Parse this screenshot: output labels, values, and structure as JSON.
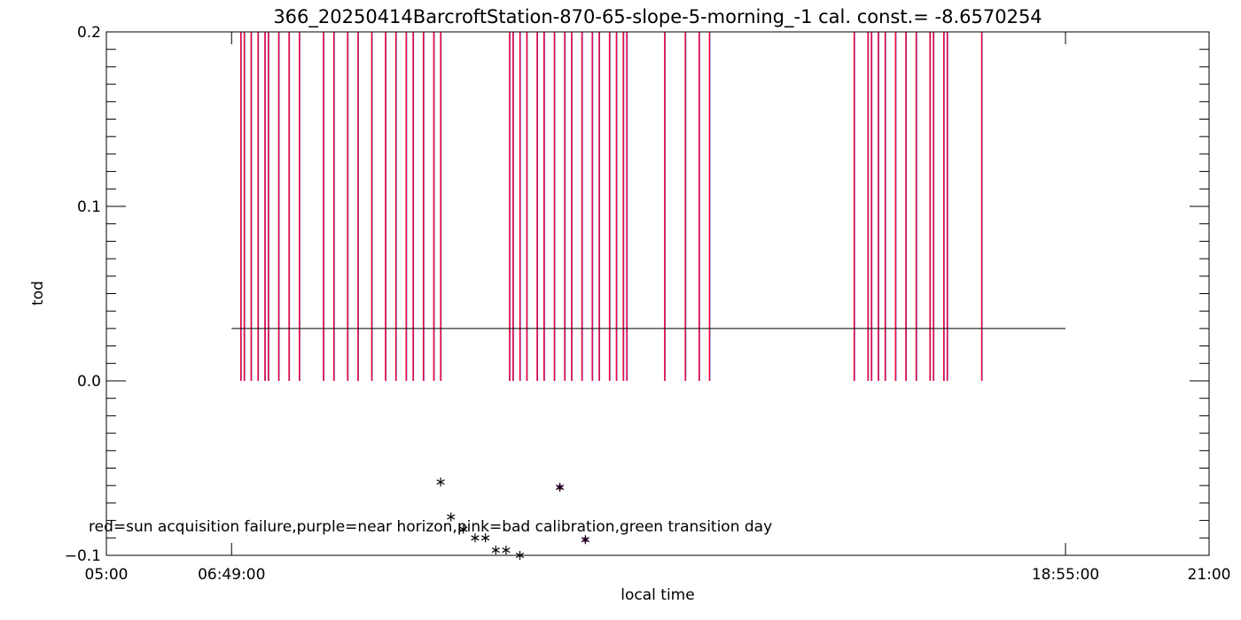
{
  "chart_data": {
    "type": "scatter",
    "title": "366_20250414BarcroftStation-870-65-slope-5-morning_-1 cal. const.= -8.6570254",
    "xlabel": "local time",
    "ylabel": "tod",
    "xlim": [
      5.0,
      21.0
    ],
    "ylim": [
      -0.1,
      0.2
    ],
    "x_tick_labels": [
      {
        "x": 5.0,
        "label": "05:00"
      },
      {
        "x": 6.8167,
        "label": "06:49:00"
      },
      {
        "x": 18.9167,
        "label": "18:55:00"
      },
      {
        "x": 21.0,
        "label": "21:00"
      }
    ],
    "y_tick_labels": [
      {
        "y": -0.1,
        "label": "−0.1"
      },
      {
        "y": 0.0,
        "label": "0.0"
      },
      {
        "y": 0.1,
        "label": "0.1"
      },
      {
        "y": 0.2,
        "label": "0.2"
      }
    ],
    "threshold_line": {
      "y": 0.03,
      "x_start": 6.8167,
      "x_end": 18.9167
    },
    "flag_lines_x": [
      6.95,
      7.0,
      7.1,
      7.2,
      7.3,
      7.35,
      7.5,
      7.65,
      7.8,
      8.15,
      8.3,
      8.5,
      8.65,
      8.85,
      9.05,
      9.2,
      9.35,
      9.45,
      9.6,
      9.75,
      9.85,
      10.85,
      10.9,
      11.0,
      11.1,
      11.25,
      11.35,
      11.5,
      11.65,
      11.75,
      11.9,
      12.05,
      12.15,
      12.3,
      12.4,
      12.5,
      12.55,
      13.1,
      13.4,
      13.6,
      13.75,
      15.85,
      16.05,
      16.1,
      16.2,
      16.3,
      16.45,
      16.6,
      16.75,
      16.95,
      17.0,
      17.15,
      17.2,
      17.7
    ],
    "flag_line_range": [
      0.0,
      0.2
    ],
    "points": [
      {
        "x": 9.85,
        "y": -0.058
      },
      {
        "x": 10.0,
        "y": -0.078
      },
      {
        "x": 10.18,
        "y": -0.085
      },
      {
        "x": 10.35,
        "y": -0.09
      },
      {
        "x": 10.5,
        "y": -0.09
      },
      {
        "x": 10.65,
        "y": -0.097
      },
      {
        "x": 10.8,
        "y": -0.097
      },
      {
        "x": 11.0,
        "y": -0.1
      },
      {
        "x": 11.58,
        "y": -0.061
      },
      {
        "x": 11.95,
        "y": -0.091
      }
    ],
    "highlighted_points_x": [
      11.58,
      11.95
    ],
    "legend_note": "red=sun acquisition failure,purple=near horizon,pink=bad calibration,green transition day",
    "colors": {
      "flag_red": "#ff0033",
      "flag_blue": "#3344dd",
      "highlight_purple": "#aa33aa",
      "axis": "#000000"
    }
  }
}
